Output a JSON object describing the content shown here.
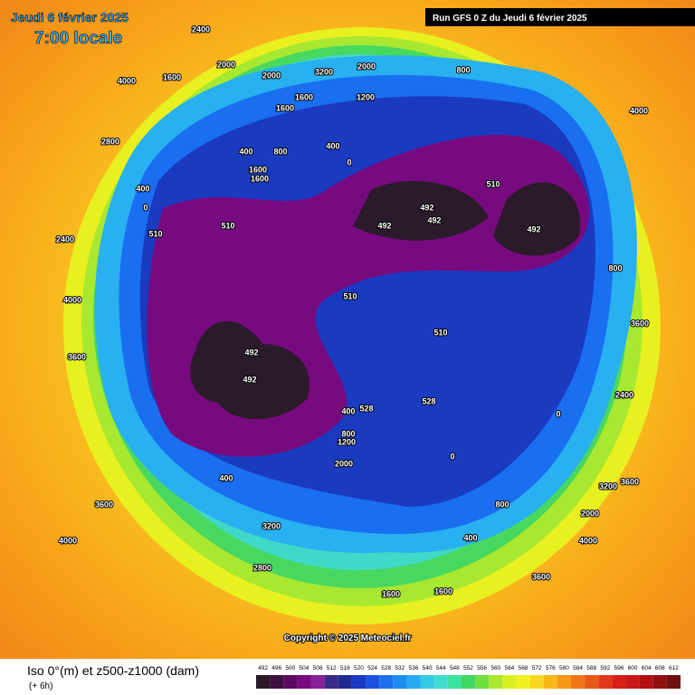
{
  "header": {
    "date": "Jeudi 6 février 2025",
    "time": "7:00 locale",
    "run": "Run GFS 0 Z du Jeudi 6 février 2025"
  },
  "footer": {
    "title": "Iso 0°(m) et z500-z1000 (dam)",
    "subtitle": "(+ 6h)",
    "copyright": "Copyright © 2025 Meteociel.fr"
  },
  "legend": {
    "ticks": [
      492,
      496,
      500,
      504,
      508,
      512,
      516,
      520,
      524,
      528,
      532,
      536,
      540,
      544,
      548,
      552,
      556,
      560,
      564,
      568,
      572,
      576,
      580,
      584,
      588,
      592,
      596,
      600,
      604,
      608,
      612
    ],
    "colors": [
      "#2a1a2a",
      "#3b1040",
      "#5a0a60",
      "#780a80",
      "#8a1f9a",
      "#3a2a8a",
      "#1e2a90",
      "#1a3ac0",
      "#1a52e0",
      "#1e6ef0",
      "#1e8cf0",
      "#28aaf0",
      "#38c8e8",
      "#40dcd0",
      "#3ce0a0",
      "#40d860",
      "#70e040",
      "#a8e830",
      "#d8f020",
      "#f0f020",
      "#f8d820",
      "#f8b818",
      "#f89818",
      "#f07818",
      "#e85818",
      "#e03818",
      "#d82018",
      "#c81818",
      "#b01010",
      "#901010",
      "#701010"
    ]
  },
  "map": {
    "labels": [
      "2400",
      "1600",
      "2000",
      "2000",
      "3200",
      "2000",
      "800",
      "1600",
      "1200",
      "1600",
      "4000",
      "2800",
      "400",
      "800",
      "400",
      "1600",
      "1600",
      "0",
      "4000",
      "492",
      "492",
      "492",
      "492",
      "510",
      "510",
      "510",
      "510",
      "510",
      "492",
      "492",
      "528",
      "528",
      "400",
      "800",
      "1200",
      "2000",
      "400",
      "3600",
      "4000",
      "3200",
      "2800",
      "3600",
      "1600",
      "1600",
      "4000",
      "3200",
      "3600",
      "2000",
      "800",
      "400",
      "2400",
      "3600",
      "800",
      "0",
      "0",
      "4000",
      "2400",
      "400",
      "0",
      "3600"
    ]
  }
}
